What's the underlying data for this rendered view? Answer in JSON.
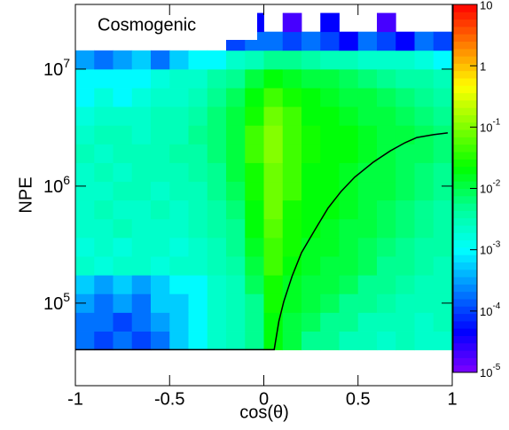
{
  "chart_data": {
    "type": "heatmap",
    "title": "Cosmogenic",
    "x_label": "cos(θ)",
    "y_label": "NPE",
    "xlim": [
      -1,
      1
    ],
    "xticks": [
      -1,
      -0.5,
      0,
      0.5,
      1
    ],
    "ylim": [
      19700,
      35700000
    ],
    "log_y": true,
    "yticks": [
      {
        "value": 100000,
        "label": "10",
        "exponent": "5"
      },
      {
        "value": 1000000,
        "label": "10",
        "exponent": "6"
      },
      {
        "value": 10000000,
        "label": "10",
        "exponent": "7"
      }
    ],
    "zlim": [
      1e-05,
      10
    ],
    "log_z": true,
    "zticks": [
      {
        "value": 1e-05,
        "label": "10",
        "exponent": "-5"
      },
      {
        "value": 0.0001,
        "label": "10",
        "exponent": "-4"
      },
      {
        "value": 0.001,
        "label": "10",
        "exponent": "-3"
      },
      {
        "value": 0.01,
        "label": "10",
        "exponent": "-2"
      },
      {
        "value": 0.1,
        "label": "10",
        "exponent": "-1"
      },
      1,
      10
    ],
    "palette": [
      "#7f00ff",
      "#0000ff",
      "#0080ff",
      "#00ffff",
      "#00ff99",
      "#00ff00",
      "#80ff00",
      "#ffff00",
      "#ff8000",
      "#ff0000"
    ],
    "x_edges": [
      -1,
      -0.9,
      -0.8,
      -0.7,
      -0.6,
      -0.5,
      -0.4,
      -0.3,
      -0.2,
      -0.1,
      0,
      0.1,
      0.2,
      0.3,
      0.4,
      0.5,
      0.6,
      0.7,
      0.8,
      0.9,
      1
    ],
    "y_edges": [
      39811,
      57544,
      83176,
      120226,
      173780,
      251189,
      363078,
      524807,
      758578,
      1096478,
      1584893,
      2290868,
      3311311,
      4786301,
      6918310,
      10000000,
      14454398,
      20892961,
      30199517
    ],
    "z": [
      [
        0.0002,
        0.0001,
        0.0002,
        0.0001,
        0.0002,
        0.0005,
        0.001,
        0.002,
        0.003,
        0.005,
        0.02,
        0.01,
        0.005,
        0.005,
        0.003,
        0.003,
        0.002,
        0.003,
        0.002,
        0.002
      ],
      [
        0.0002,
        0.0002,
        0.0001,
        0.0002,
        0.0003,
        0.0005,
        0.001,
        0.002,
        0.003,
        0.005,
        0.02,
        0.01,
        0.008,
        0.005,
        0.005,
        0.003,
        0.003,
        0.003,
        0.002,
        0.003
      ],
      [
        0.0003,
        0.0002,
        0.0003,
        0.0002,
        0.0005,
        0.0005,
        0.001,
        0.002,
        0.003,
        0.005,
        0.03,
        0.015,
        0.01,
        0.008,
        0.005,
        0.005,
        0.004,
        0.003,
        0.003,
        0.003
      ],
      [
        0.0005,
        0.0003,
        0.0005,
        0.0003,
        0.0005,
        0.001,
        0.001,
        0.002,
        0.003,
        0.008,
        0.03,
        0.015,
        0.01,
        0.01,
        0.008,
        0.005,
        0.005,
        0.004,
        0.003,
        0.003
      ],
      [
        0.002,
        0.0015,
        0.002,
        0.002,
        0.0015,
        0.002,
        0.002,
        0.003,
        0.004,
        0.01,
        0.05,
        0.02,
        0.015,
        0.01,
        0.01,
        0.008,
        0.005,
        0.005,
        0.004,
        0.003
      ],
      [
        0.0015,
        0.002,
        0.0015,
        0.002,
        0.002,
        0.0015,
        0.002,
        0.003,
        0.005,
        0.015,
        0.05,
        0.03,
        0.015,
        0.015,
        0.01,
        0.008,
        0.006,
        0.005,
        0.004,
        0.004
      ],
      [
        0.002,
        0.002,
        0.003,
        0.002,
        0.002,
        0.002,
        0.003,
        0.004,
        0.005,
        0.02,
        0.06,
        0.03,
        0.02,
        0.015,
        0.01,
        0.01,
        0.008,
        0.006,
        0.005,
        0.004
      ],
      [
        0.002,
        0.003,
        0.002,
        0.002,
        0.003,
        0.002,
        0.003,
        0.004,
        0.006,
        0.02,
        0.08,
        0.03,
        0.02,
        0.02,
        0.015,
        0.01,
        0.008,
        0.006,
        0.005,
        0.004
      ],
      [
        0.002,
        0.002,
        0.003,
        0.003,
        0.002,
        0.003,
        0.003,
        0.005,
        0.008,
        0.03,
        0.08,
        0.04,
        0.02,
        0.02,
        0.015,
        0.01,
        0.01,
        0.008,
        0.006,
        0.005
      ],
      [
        0.002,
        0.003,
        0.002,
        0.003,
        0.003,
        0.003,
        0.004,
        0.005,
        0.01,
        0.03,
        0.08,
        0.05,
        0.02,
        0.02,
        0.015,
        0.012,
        0.01,
        0.008,
        0.006,
        0.005
      ],
      [
        0.003,
        0.002,
        0.003,
        0.003,
        0.003,
        0.004,
        0.004,
        0.006,
        0.01,
        0.04,
        0.1,
        0.05,
        0.03,
        0.02,
        0.02,
        0.015,
        0.01,
        0.008,
        0.008,
        0.006
      ],
      [
        0.002,
        0.003,
        0.003,
        0.002,
        0.003,
        0.003,
        0.005,
        0.006,
        0.01,
        0.04,
        0.1,
        0.05,
        0.03,
        0.02,
        0.02,
        0.015,
        0.01,
        0.01,
        0.008,
        0.006
      ],
      [
        0.0015,
        0.002,
        0.002,
        0.002,
        0.003,
        0.003,
        0.004,
        0.006,
        0.01,
        0.03,
        0.08,
        0.05,
        0.02,
        0.02,
        0.015,
        0.01,
        0.01,
        0.008,
        0.006,
        0.005
      ],
      [
        0.001,
        0.0015,
        0.001,
        0.0015,
        0.002,
        0.002,
        0.003,
        0.005,
        0.008,
        0.02,
        0.05,
        0.03,
        0.02,
        0.015,
        0.01,
        0.01,
        0.008,
        0.006,
        0.005,
        0.004
      ],
      [
        0.001,
        0.001,
        0.001,
        0.001,
        0.0015,
        0.002,
        0.002,
        0.004,
        0.005,
        0.01,
        0.02,
        0.015,
        0.01,
        0.01,
        0.008,
        0.006,
        0.005,
        0.004,
        0.004,
        0.003
      ],
      [
        0.0003,
        0.0002,
        0.0003,
        0.0005,
        0.0002,
        0.0005,
        0.001,
        0.001,
        0.002,
        0.003,
        0.005,
        0.005,
        0.004,
        0.003,
        0.003,
        0.002,
        0.002,
        0.002,
        0.0015,
        0.001
      ],
      [
        null,
        null,
        null,
        null,
        null,
        null,
        null,
        null,
        0.0001,
        0.0002,
        0.0002,
        0.0001,
        0.0002,
        0.0001,
        5e-05,
        0.0002,
        0.0001,
        5e-05,
        0.0002,
        0.0001
      ],
      [
        null,
        null,
        null,
        null,
        null,
        null,
        null,
        null,
        null,
        5e-05,
        null,
        2e-05,
        null,
        5e-05,
        null,
        null,
        2e-05,
        null,
        null,
        null
      ]
    ],
    "cut_line": {
      "color": "#000000",
      "x": [
        -1,
        0.055,
        0.08,
        0.106,
        0.15,
        0.2,
        0.27,
        0.341,
        0.41,
        0.482,
        0.58,
        0.671,
        0.75,
        0.812,
        0.9,
        0.976
      ],
      "y": [
        40000,
        40000,
        70000,
        103000,
        170000,
        270000,
        420000,
        650000,
        900000,
        1190000,
        1600000,
        2000000,
        2350000,
        2600000,
        2750000,
        2850000
      ]
    }
  }
}
